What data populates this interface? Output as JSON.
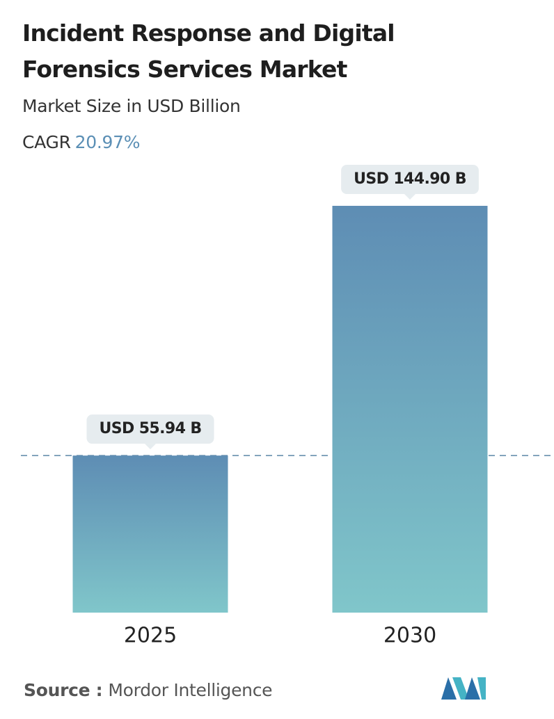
{
  "chart_data": {
    "type": "bar",
    "title": "Incident Response and Digital Forensics Services Market",
    "subtitle": "Market Size in USD Billion",
    "cagr_label": "CAGR",
    "cagr_value": "20.97%",
    "categories": [
      "2025",
      "2030"
    ],
    "values": [
      55.94,
      144.9
    ],
    "value_labels": [
      "USD 55.94 B",
      "USD 144.90 B"
    ],
    "gradient": [
      "#5e8db4",
      "#80c6ca"
    ],
    "source_label": "Source :",
    "source": "Mordor Intelligence"
  }
}
